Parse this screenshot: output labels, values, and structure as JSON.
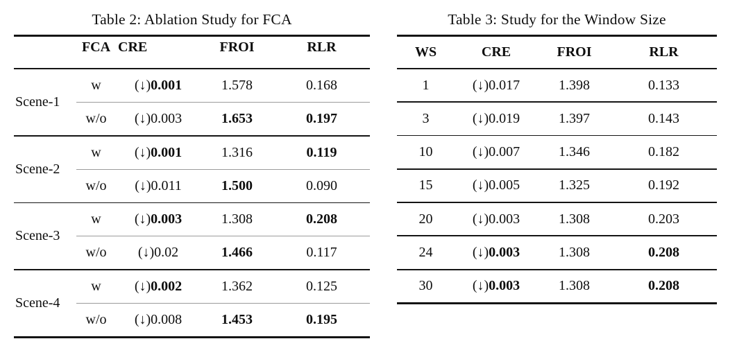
{
  "table2": {
    "title": "Table 2: Ablation Study for FCA",
    "headers": {
      "fca": "FCA",
      "cre": "CRE",
      "froi": "FROI",
      "rlr": "RLR"
    },
    "arrow": "(↓)",
    "groups": [
      {
        "scene": "Scene-1",
        "rows": [
          {
            "fca": "w",
            "cre": "0.001",
            "cre_bold": true,
            "froi": "1.578",
            "froi_bold": false,
            "rlr": "0.168",
            "rlr_bold": false
          },
          {
            "fca": "w/o",
            "cre": "0.003",
            "cre_bold": false,
            "froi": "1.653",
            "froi_bold": true,
            "rlr": "0.197",
            "rlr_bold": true
          }
        ]
      },
      {
        "scene": "Scene-2",
        "rows": [
          {
            "fca": "w",
            "cre": "0.001",
            "cre_bold": true,
            "froi": "1.316",
            "froi_bold": false,
            "rlr": "0.119",
            "rlr_bold": true
          },
          {
            "fca": "w/o",
            "cre": "0.011",
            "cre_bold": false,
            "froi": "1.500",
            "froi_bold": true,
            "rlr": "0.090",
            "rlr_bold": false
          }
        ]
      },
      {
        "scene": "Scene-3",
        "rows": [
          {
            "fca": "w",
            "cre": "0.003",
            "cre_bold": true,
            "froi": "1.308",
            "froi_bold": false,
            "rlr": "0.208",
            "rlr_bold": true
          },
          {
            "fca": "w/o",
            "cre": "0.02",
            "cre_bold": false,
            "froi": "1.466",
            "froi_bold": true,
            "rlr": "0.117",
            "rlr_bold": false
          }
        ]
      },
      {
        "scene": "Scene-4",
        "rows": [
          {
            "fca": "w",
            "cre": "0.002",
            "cre_bold": true,
            "froi": "1.362",
            "froi_bold": false,
            "rlr": "0.125",
            "rlr_bold": false
          },
          {
            "fca": "w/o",
            "cre": "0.008",
            "cre_bold": false,
            "froi": "1.453",
            "froi_bold": true,
            "rlr": "0.195",
            "rlr_bold": true
          }
        ]
      }
    ]
  },
  "table3": {
    "title": "Table 3: Study for the Window Size",
    "headers": {
      "ws": "WS",
      "cre": "CRE",
      "froi": "FROI",
      "rlr": "RLR"
    },
    "arrow": "(↓)",
    "rows": [
      {
        "ws": "1",
        "cre": "0.017",
        "cre_bold": false,
        "froi": "1.398",
        "froi_bold": false,
        "rlr": "0.133",
        "rlr_bold": false
      },
      {
        "ws": "3",
        "cre": "0.019",
        "cre_bold": false,
        "froi": "1.397",
        "froi_bold": false,
        "rlr": "0.143",
        "rlr_bold": false
      },
      {
        "ws": "10",
        "cre": "0.007",
        "cre_bold": false,
        "froi": "1.346",
        "froi_bold": false,
        "rlr": "0.182",
        "rlr_bold": false
      },
      {
        "ws": "15",
        "cre": "0.005",
        "cre_bold": false,
        "froi": "1.325",
        "froi_bold": false,
        "rlr": "0.192",
        "rlr_bold": false
      },
      {
        "ws": "20",
        "cre": "0.003",
        "cre_bold": false,
        "froi": "1.308",
        "froi_bold": false,
        "rlr": "0.203",
        "rlr_bold": false
      },
      {
        "ws": "24",
        "cre": "0.003",
        "cre_bold": true,
        "froi": "1.308",
        "froi_bold": false,
        "rlr": "0.208",
        "rlr_bold": true
      },
      {
        "ws": "30",
        "cre": "0.003",
        "cre_bold": true,
        "froi": "1.308",
        "froi_bold": false,
        "rlr": "0.208",
        "rlr_bold": true
      }
    ]
  }
}
